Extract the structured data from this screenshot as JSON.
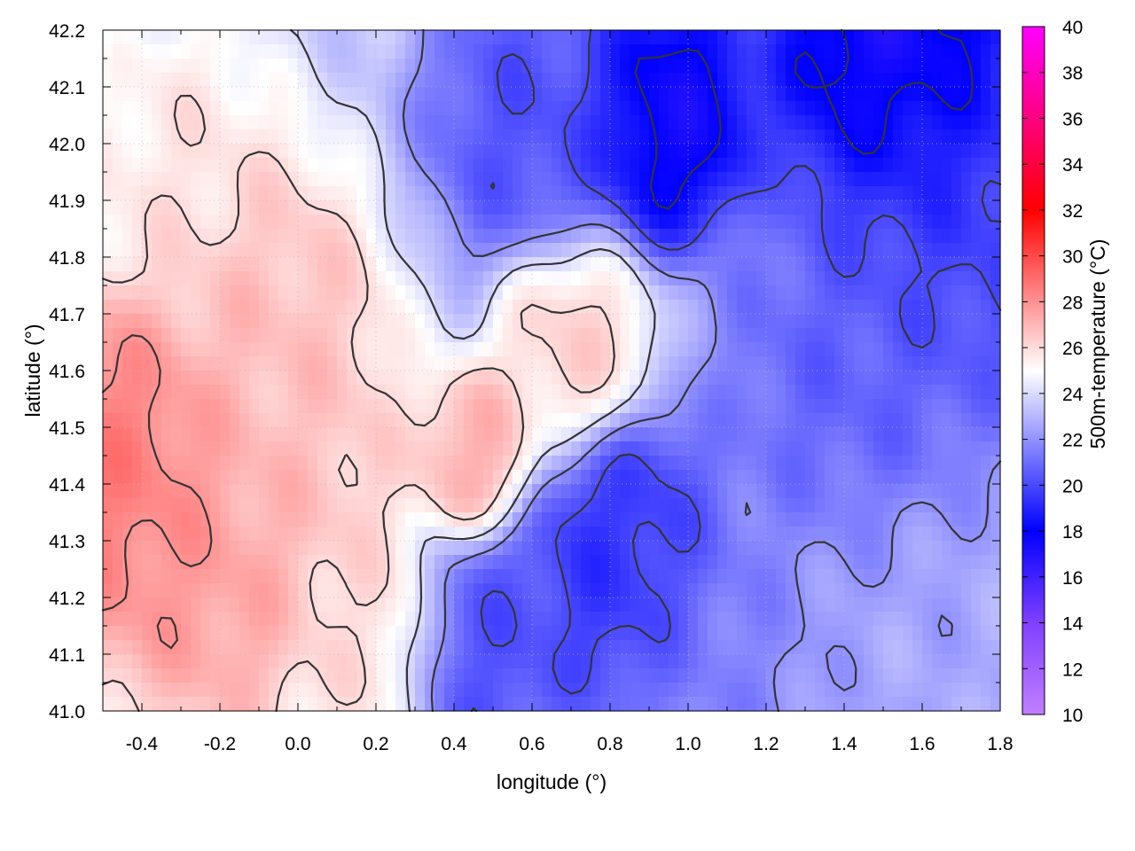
{
  "chart_data": {
    "type": "heatmap",
    "title": "",
    "xlabel": "longitude (°)",
    "ylabel": "latitude (°)",
    "colorbar_label": "500m-temperature (°C)",
    "xlim": [
      -0.5,
      1.8
    ],
    "ylim": [
      41.0,
      42.2
    ],
    "clim": [
      10,
      40
    ],
    "x_ticks": [
      "-0.4",
      "-0.2",
      "0.0",
      "0.2",
      "0.4",
      "0.6",
      "0.8",
      "1.0",
      "1.2",
      "1.4",
      "1.6",
      "1.8"
    ],
    "y_ticks": [
      "41.0",
      "41.1",
      "41.2",
      "41.3",
      "41.4",
      "41.5",
      "41.6",
      "41.7",
      "41.8",
      "41.9",
      "42.0",
      "42.1",
      "42.2"
    ],
    "colorbar_ticks": [
      "10",
      "12",
      "14",
      "16",
      "18",
      "20",
      "22",
      "24",
      "26",
      "28",
      "30",
      "32",
      "34",
      "36",
      "38",
      "40"
    ],
    "grid": true,
    "colormap": [
      {
        "value": 10,
        "color": "#c080ff"
      },
      {
        "value": 14,
        "color": "#8040ff"
      },
      {
        "value": 18,
        "color": "#0000ff"
      },
      {
        "value": 25,
        "color": "#ffffff"
      },
      {
        "value": 32,
        "color": "#ff0000"
      },
      {
        "value": 40,
        "color": "#ff00ff"
      }
    ],
    "contour_color": "#333333",
    "field_centers": [
      {
        "lon": -0.45,
        "lat": 41.42,
        "temp": 29.0,
        "spread": 0.22
      },
      {
        "lon": -0.2,
        "lat": 41.25,
        "temp": 27.8,
        "spread": 0.2
      },
      {
        "lon": -0.1,
        "lat": 41.7,
        "temp": 27.0,
        "spread": 0.2
      },
      {
        "lon": 0.0,
        "lat": 41.45,
        "temp": 26.8,
        "spread": 0.2
      },
      {
        "lon": 0.45,
        "lat": 41.45,
        "temp": 27.5,
        "spread": 0.1
      },
      {
        "lon": 0.7,
        "lat": 41.65,
        "temp": 26.5,
        "spread": 0.13
      },
      {
        "lon": -0.3,
        "lat": 41.95,
        "temp": 25.8,
        "spread": 0.18
      },
      {
        "lon": 0.15,
        "lat": 41.15,
        "temp": 26.0,
        "spread": 0.15
      },
      {
        "lon": 0.6,
        "lat": 42.05,
        "temp": 20.0,
        "spread": 0.18
      },
      {
        "lon": 0.95,
        "lat": 42.05,
        "temp": 17.0,
        "spread": 0.15
      },
      {
        "lon": 1.55,
        "lat": 42.15,
        "temp": 16.5,
        "spread": 0.22
      },
      {
        "lon": 1.7,
        "lat": 41.9,
        "temp": 19.5,
        "spread": 0.25
      },
      {
        "lon": 1.45,
        "lat": 41.6,
        "temp": 20.5,
        "spread": 0.25
      },
      {
        "lon": 0.85,
        "lat": 41.25,
        "temp": 19.0,
        "spread": 0.18
      },
      {
        "lon": 0.5,
        "lat": 41.1,
        "temp": 20.0,
        "spread": 0.15
      },
      {
        "lon": 1.6,
        "lat": 41.1,
        "temp": 22.5,
        "spread": 0.25
      },
      {
        "lon": 1.1,
        "lat": 41.1,
        "temp": 21.5,
        "spread": 0.2
      }
    ],
    "contour_levels": [
      18,
      20,
      22,
      24,
      26,
      28
    ]
  }
}
